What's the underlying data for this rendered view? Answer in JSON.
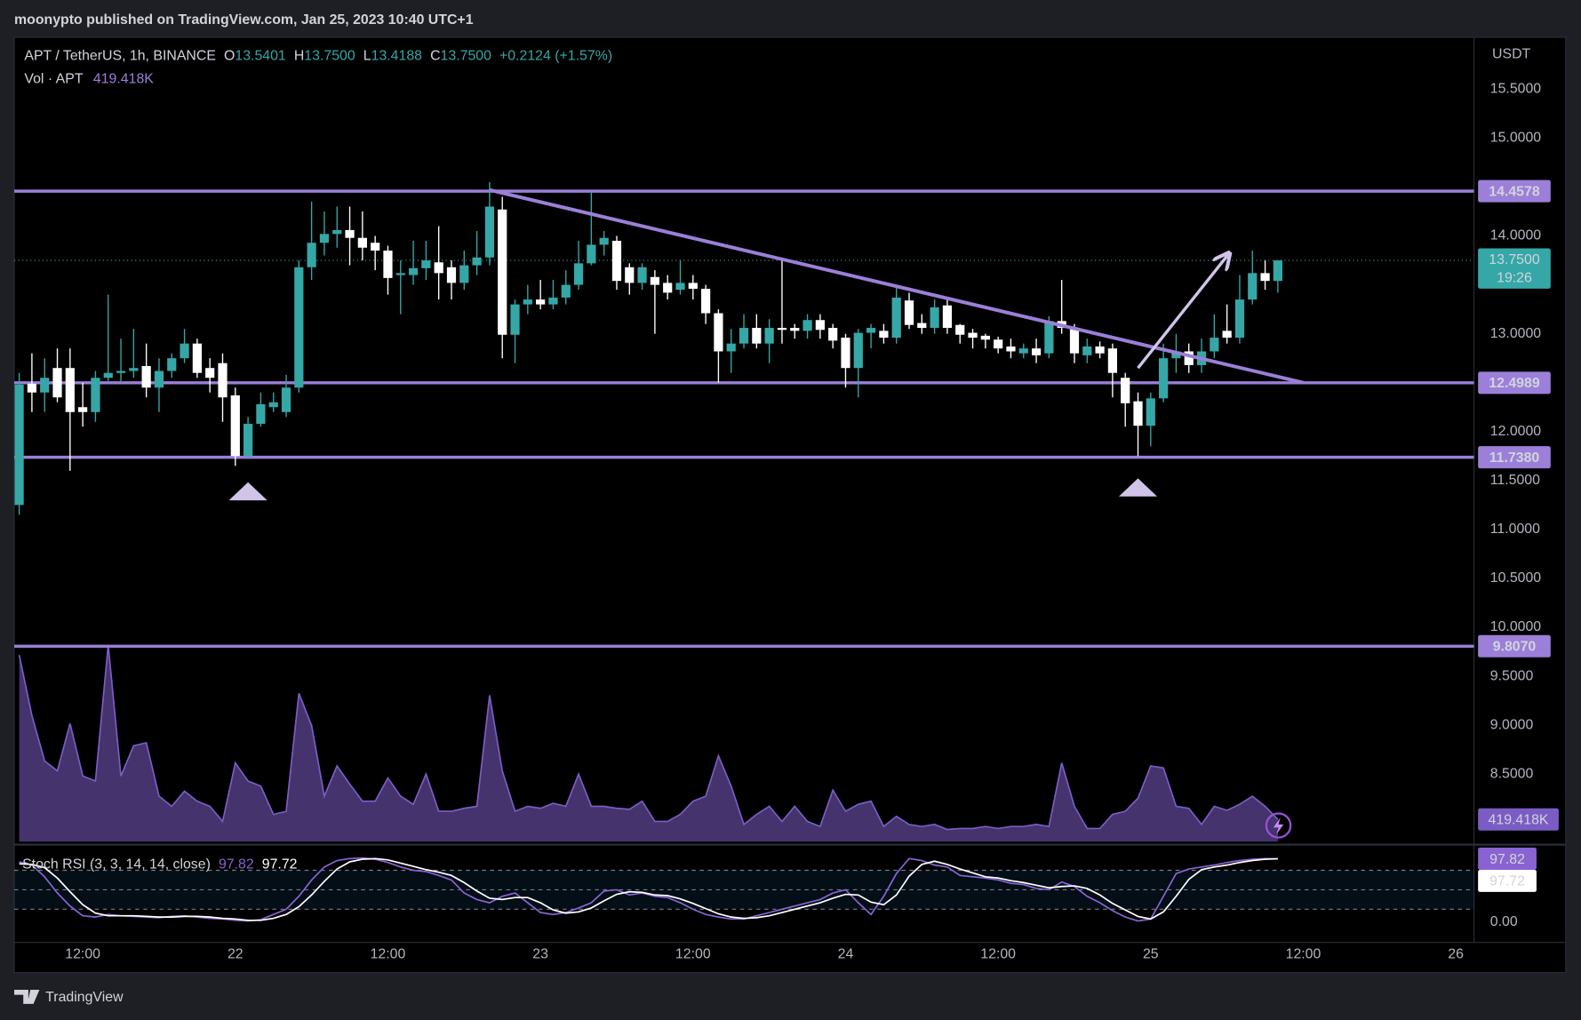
{
  "header": "moonypto published on TradingView.com, Jan 25, 2023 10:40 UTC+1",
  "footer": "TradingView",
  "chart_data": {
    "type": "candlestick",
    "symbol": "APT / TetherUS, 1h, BINANCE",
    "ohlc_legend": [
      {
        "key": "O",
        "text": "13.5401"
      },
      {
        "key": "H",
        "text": "13.7500"
      },
      {
        "key": "L",
        "text": "13.4188"
      },
      {
        "key": "C",
        "text": "13.7500"
      }
    ],
    "change": "+0.2124 (+1.57%)",
    "volume_title": "Vol · APT",
    "volume_label": "419.418K",
    "y_unit": "USDT",
    "up_color": "#35a7a7",
    "down_color": "#ffffff",
    "level_color": "#9b7fd8",
    "drawing_color": "#d1c4e9",
    "x": [
      7,
      8,
      9,
      10,
      11,
      12,
      13,
      14,
      15,
      16,
      17,
      18,
      19,
      20,
      21,
      22,
      23,
      24,
      25,
      26,
      27,
      28,
      29,
      30,
      31,
      32,
      33,
      34,
      35,
      36,
      37,
      38,
      39,
      40,
      41,
      42,
      43,
      44,
      45,
      46,
      47,
      48,
      49,
      50,
      51,
      52,
      53,
      54,
      55,
      56,
      57,
      58,
      59,
      60,
      61,
      62,
      63,
      64,
      65,
      66,
      67,
      68,
      69,
      70,
      71,
      72,
      73,
      74,
      75,
      76,
      77,
      78,
      79,
      80,
      81,
      82,
      83,
      84,
      85,
      86,
      87,
      88,
      89,
      90,
      91,
      92,
      93,
      94,
      95,
      96,
      97,
      98,
      99,
      100,
      101,
      102,
      103,
      104,
      105,
      106
    ],
    "open": [
      11.25,
      12.49,
      12.4,
      12.65,
      12.65,
      12.25,
      12.2,
      12.55,
      12.6,
      12.62,
      12.67,
      12.45,
      12.62,
      12.75,
      12.9,
      12.65,
      12.7,
      12.37,
      11.75,
      12.08,
      12.25,
      12.2,
      12.45,
      13.68,
      13.93,
      14.02,
      14.06,
      13.98,
      13.93,
      13.85,
      13.6,
      13.6,
      13.67,
      13.73,
      13.68,
      13.52,
      13.7,
      13.78,
      14.27,
      12.99,
      13.3,
      13.35,
      13.3,
      13.37,
      13.5,
      13.72,
      13.91,
      13.95,
      13.68,
      13.52,
      13.58,
      13.52,
      13.45,
      13.52,
      13.46,
      13.21,
      12.82,
      12.9,
      13.06,
      12.9,
      13.06,
      13.06,
      13.03,
      13.14,
      13.06,
      12.96,
      12.65,
      13.01,
      13.03,
      12.96,
      13.34,
      13.11,
      13.06,
      13.29,
      13.09,
      13.01,
      12.98,
      12.94,
      12.87,
      12.8,
      12.85,
      12.8,
      13.13,
      13.06,
      12.78,
      12.87,
      12.85,
      12.55,
      12.31,
      12.06,
      12.34,
      12.75,
      12.82,
      12.68,
      12.82,
      13.03,
      12.96,
      13.35,
      13.62,
      13.5401
    ],
    "high": [
      12.6,
      12.8,
      12.75,
      12.85,
      12.85,
      12.5,
      12.62,
      13.4,
      12.95,
      13.05,
      12.9,
      12.75,
      12.8,
      13.05,
      12.95,
      12.75,
      12.8,
      12.45,
      12.15,
      12.4,
      12.4,
      12.58,
      13.75,
      14.35,
      14.25,
      14.3,
      14.3,
      14.25,
      14.0,
      13.9,
      13.75,
      13.95,
      13.95,
      14.1,
      13.75,
      13.85,
      14.05,
      14.55,
      14.4,
      13.35,
      13.5,
      13.55,
      13.55,
      13.65,
      13.95,
      14.45,
      14.05,
      14.0,
      13.72,
      13.72,
      13.65,
      13.6,
      13.75,
      13.6,
      13.5,
      13.25,
      13.05,
      13.2,
      13.2,
      13.15,
      13.75,
      13.1,
      13.2,
      13.2,
      13.1,
      13.0,
      13.05,
      13.1,
      13.1,
      13.5,
      13.42,
      13.2,
      13.35,
      13.35,
      13.1,
      13.05,
      13.0,
      12.97,
      12.95,
      12.9,
      12.95,
      13.18,
      13.55,
      13.1,
      12.95,
      12.92,
      12.9,
      12.6,
      12.4,
      12.4,
      12.9,
      13.0,
      12.9,
      12.95,
      13.2,
      13.3,
      13.6,
      13.85,
      13.75,
      13.75
    ],
    "low": [
      11.15,
      12.2,
      12.2,
      12.3,
      11.6,
      12.05,
      12.1,
      12.5,
      12.5,
      12.55,
      12.35,
      12.2,
      12.55,
      12.7,
      12.55,
      12.4,
      12.1,
      11.65,
      11.72,
      12.05,
      12.2,
      12.15,
      12.4,
      13.55,
      13.8,
      13.88,
      13.7,
      13.75,
      13.65,
      13.4,
      13.2,
      13.5,
      13.55,
      13.35,
      13.35,
      13.45,
      13.6,
      13.7,
      12.75,
      12.7,
      13.2,
      13.25,
      13.25,
      13.3,
      13.45,
      13.7,
      13.8,
      13.45,
      13.4,
      13.45,
      13.0,
      13.35,
      13.4,
      13.35,
      13.1,
      12.5,
      12.6,
      12.85,
      12.85,
      12.7,
      12.9,
      12.95,
      12.95,
      12.95,
      12.85,
      12.45,
      12.35,
      12.85,
      12.9,
      12.9,
      13.05,
      13.0,
      13.0,
      13.0,
      12.9,
      12.85,
      12.85,
      12.8,
      12.75,
      12.75,
      12.7,
      12.75,
      13.0,
      12.7,
      12.7,
      12.75,
      12.35,
      12.05,
      11.75,
      11.85,
      12.3,
      12.6,
      12.6,
      12.6,
      12.75,
      12.9,
      12.9,
      13.3,
      13.45,
      13.4188
    ],
    "close": [
      12.48,
      12.4,
      12.55,
      12.35,
      12.2,
      12.2,
      12.55,
      12.6,
      12.62,
      12.65,
      12.45,
      12.62,
      12.75,
      12.9,
      12.6,
      12.55,
      12.35,
      11.75,
      12.08,
      12.28,
      12.3,
      12.45,
      13.68,
      13.93,
      14.02,
      14.06,
      13.98,
      13.88,
      13.85,
      13.57,
      13.62,
      13.67,
      13.75,
      13.62,
      13.52,
      13.7,
      13.78,
      14.3,
      12.99,
      13.3,
      13.35,
      13.3,
      13.37,
      13.5,
      13.72,
      13.91,
      13.98,
      13.54,
      13.52,
      13.68,
      13.5,
      13.42,
      13.52,
      13.46,
      13.21,
      12.82,
      12.9,
      13.06,
      12.9,
      13.06,
      13.04,
      13.03,
      13.14,
      13.04,
      12.93,
      12.65,
      13.01,
      13.06,
      12.96,
      13.37,
      13.09,
      13.06,
      13.27,
      13.06,
      12.99,
      12.96,
      12.94,
      12.85,
      12.82,
      12.85,
      12.78,
      13.13,
      13.06,
      12.8,
      12.87,
      12.8,
      12.6,
      12.29,
      12.06,
      12.34,
      12.75,
      12.82,
      12.68,
      12.82,
      12.96,
      12.96,
      13.35,
      13.62,
      13.54,
      13.75
    ],
    "xlim": [
      6.61,
      121.43
    ],
    "xticks": [
      {
        "value": 12,
        "label": "12:00"
      },
      {
        "value": 24,
        "label": "22"
      },
      {
        "value": 36,
        "label": "12:00"
      },
      {
        "value": 48,
        "label": "23"
      },
      {
        "value": 60,
        "label": "12:00"
      },
      {
        "value": 72,
        "label": "24"
      },
      {
        "value": 84,
        "label": "12:00"
      },
      {
        "value": 96,
        "label": "25"
      },
      {
        "value": 108,
        "label": "12:00"
      },
      {
        "value": 120,
        "label": "26"
      }
    ],
    "ylim": [
      7.81,
      16.03
    ],
    "yticks": [
      {
        "value": 15.5,
        "label": "15.5000"
      },
      {
        "value": 15,
        "label": "15.0000"
      },
      {
        "value": 14,
        "label": "14.0000"
      },
      {
        "value": 13,
        "label": "13.0000"
      },
      {
        "value": 12,
        "label": "12.0000"
      },
      {
        "value": 11.5,
        "label": "11.5000"
      },
      {
        "value": 11,
        "label": "11.0000"
      },
      {
        "value": 10.5,
        "label": "10.5000"
      },
      {
        "value": 10,
        "label": "10.0000"
      },
      {
        "value": 9.5,
        "label": "9.5000"
      },
      {
        "value": 9,
        "label": "9.0000"
      },
      {
        "value": 8.5,
        "label": "8.5000"
      }
    ],
    "levels": [
      {
        "value": 14.4578,
        "label": "14.4578"
      },
      {
        "value": 12.4989,
        "label": "12.4989"
      },
      {
        "value": 11.738,
        "label": "11.7380"
      },
      {
        "value": 9.807,
        "label": "9.8070"
      }
    ],
    "current_price": {
      "value": 13.75,
      "label": "13.7500"
    },
    "countdown": "19:26",
    "trendline": {
      "x": [
        44,
        108
      ],
      "y": [
        14.47,
        12.5
      ]
    },
    "arrow": {
      "x": [
        95,
        102.1
      ],
      "y": [
        12.65,
        13.81
      ]
    },
    "markers": {
      "x": [
        25,
        95
      ],
      "y": [
        11.39,
        11.43
      ]
    },
    "volume": [
      3527000,
      2383000,
      1525000,
      1335000,
      2231000,
      1239000,
      1144000,
      3718000,
      1239000,
      1811000,
      1868000,
      858000,
      667000,
      953000,
      763000,
      667000,
      381000,
      1487000,
      1144000,
      1049000,
      515000,
      572000,
      2803000,
      2192000,
      858000,
      1430000,
      1087000,
      763000,
      763000,
      1201000,
      858000,
      705000,
      1277000,
      572000,
      572000,
      629000,
      667000,
      2764000,
      1335000,
      572000,
      667000,
      629000,
      724000,
      667000,
      1277000,
      667000,
      667000,
      629000,
      610000,
      763000,
      381000,
      381000,
      515000,
      763000,
      858000,
      1621000,
      1049000,
      324000,
      515000,
      667000,
      381000,
      667000,
      381000,
      286000,
      972000,
      572000,
      705000,
      763000,
      286000,
      477000,
      324000,
      286000,
      324000,
      229000,
      248000,
      248000,
      286000,
      248000,
      286000,
      286000,
      324000,
      286000,
      1487000,
      667000,
      248000,
      248000,
      515000,
      572000,
      820000,
      1430000,
      1392000,
      667000,
      629000,
      324000,
      667000,
      591000,
      705000,
      858000,
      667000,
      419418
    ],
    "volume_color": "#7b5cc4",
    "vlim": [
      0,
      15200000
    ],
    "stoch": {
      "title": "Stoch RSI (3, 3, 14, 14, close)",
      "k_color": "#8a63d2",
      "d_color": "#ffffff",
      "k": [
        93,
        88,
        70,
        45,
        25,
        10,
        8,
        12,
        10,
        9,
        8,
        7,
        9,
        10,
        8,
        6,
        5,
        3,
        2,
        4,
        12,
        20,
        40,
        65,
        85,
        95,
        98,
        99,
        97,
        92,
        85,
        80,
        78,
        72,
        65,
        45,
        35,
        30,
        40,
        45,
        30,
        15,
        12,
        15,
        22,
        30,
        48,
        50,
        42,
        45,
        40,
        38,
        30,
        20,
        12,
        8,
        5,
        5,
        10,
        15,
        20,
        25,
        30,
        35,
        45,
        50,
        30,
        12,
        40,
        75,
        98,
        95,
        88,
        85,
        72,
        70,
        68,
        65,
        60,
        58,
        52,
        50,
        62,
        55,
        40,
        30,
        18,
        8,
        2,
        5,
        40,
        75,
        82,
        85,
        88,
        92,
        95,
        97,
        98,
        97.82
      ],
      "d": [
        90,
        89,
        84,
        68,
        47,
        27,
        14,
        10,
        10,
        10,
        9,
        8,
        8,
        9,
        9,
        8,
        6,
        5,
        3,
        3,
        6,
        12,
        24,
        42,
        63,
        82,
        93,
        97,
        98,
        96,
        91,
        86,
        81,
        77,
        72,
        61,
        48,
        37,
        35,
        38,
        38,
        30,
        19,
        14,
        16,
        22,
        33,
        43,
        47,
        46,
        42,
        41,
        36,
        29,
        21,
        13,
        8,
        6,
        7,
        10,
        15,
        20,
        25,
        30,
        37,
        43,
        42,
        31,
        27,
        42,
        71,
        89,
        94,
        89,
        82,
        76,
        70,
        68,
        64,
        61,
        57,
        53,
        55,
        56,
        52,
        42,
        29,
        19,
        9,
        5,
        16,
        40,
        66,
        81,
        85,
        88,
        92,
        95,
        97,
        97.72
      ],
      "ylim": [
        -31,
        116.4
      ],
      "yticks": [
        {
          "value": 0,
          "label": "0.00"
        }
      ],
      "bands": [
        20,
        50,
        80
      ]
    }
  }
}
